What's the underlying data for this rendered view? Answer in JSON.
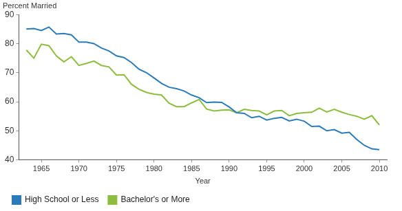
{
  "chart_data": {
    "type": "line",
    "y_label": "Percent Married",
    "x_label": "Year",
    "x": [
      1963,
      1964,
      1965,
      1966,
      1967,
      1968,
      1969,
      1970,
      1971,
      1972,
      1973,
      1974,
      1975,
      1976,
      1977,
      1978,
      1979,
      1980,
      1981,
      1982,
      1983,
      1984,
      1985,
      1986,
      1987,
      1988,
      1989,
      1990,
      1991,
      1992,
      1993,
      1994,
      1995,
      1996,
      1997,
      1998,
      1999,
      2000,
      2001,
      2002,
      2003,
      2004,
      2005,
      2006,
      2007,
      2008,
      2009,
      2010
    ],
    "series": [
      {
        "name": "High School or Less",
        "color": "#2b7bba",
        "values": [
          85,
          85.2,
          84.5,
          85.7,
          83.3,
          83.5,
          83,
          80.5,
          80.5,
          80,
          78.5,
          77.5,
          75.8,
          75.2,
          73.5,
          71.2,
          70,
          68.2,
          66.3,
          65,
          64.5,
          63.7,
          62.3,
          61.4,
          59.7,
          59.9,
          59.8,
          58.2,
          56.2,
          56,
          54.5,
          55,
          53.7,
          54.3,
          54.6,
          53.4,
          54,
          53.3,
          51.5,
          51.6,
          50,
          50.4,
          49.2,
          49.5,
          47,
          45,
          43.8,
          43.5
        ]
      },
      {
        "name": "Bachelor's or More",
        "color": "#8dbd3e",
        "values": [
          77.8,
          75,
          79.8,
          79.3,
          75.8,
          73.7,
          75.5,
          72.5,
          73.2,
          74,
          72.5,
          72,
          69.2,
          69.3,
          66,
          64.3,
          63.2,
          62.6,
          62.3,
          59.5,
          58.3,
          58.3,
          59.6,
          60.8,
          57.5,
          56.8,
          57.1,
          57.2,
          56.2,
          57.4,
          57,
          56.8,
          55.5,
          56.8,
          57,
          55.2,
          56,
          56.2,
          56.4,
          57.8,
          56.5,
          57.4,
          56.4,
          55.6,
          55,
          54,
          55.2,
          52
        ]
      }
    ],
    "xlim": [
      1962,
      2011
    ],
    "xticks": [
      1965,
      1970,
      1975,
      1980,
      1985,
      1990,
      1995,
      2000,
      2005,
      2010
    ],
    "ylim": [
      40,
      90
    ],
    "yticks": [
      40,
      50,
      60,
      70,
      80,
      90
    ],
    "grid": false,
    "legend": "bottom"
  }
}
